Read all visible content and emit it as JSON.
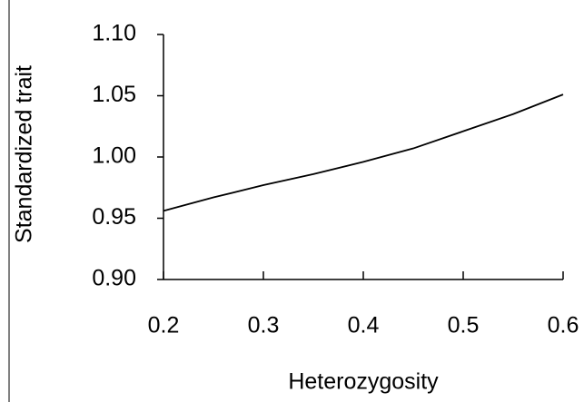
{
  "chart_data": {
    "type": "line",
    "y_label": "Standardized trait",
    "x_label": "Heterozygosity",
    "x": [
      0.2,
      0.25,
      0.3,
      0.35,
      0.4,
      0.45,
      0.5,
      0.55,
      0.6
    ],
    "values": [
      0.956,
      0.967,
      0.977,
      0.986,
      0.996,
      1.007,
      1.021,
      1.035,
      1.051
    ],
    "color": "#000000",
    "xlim": [
      0.2,
      0.6
    ],
    "xticks": [
      0.2,
      0.3,
      0.4,
      0.5,
      0.6
    ],
    "ylim": [
      0.9,
      1.1
    ],
    "yticks": [
      {
        "value": 0.9,
        "label": "0.90"
      },
      {
        "value": 0.95,
        "label": "0.95"
      },
      {
        "value": 1.0,
        "label": "1.00"
      },
      {
        "value": 1.05,
        "label": "1.05"
      },
      {
        "value": 1.1,
        "label": "1.10"
      }
    ]
  }
}
